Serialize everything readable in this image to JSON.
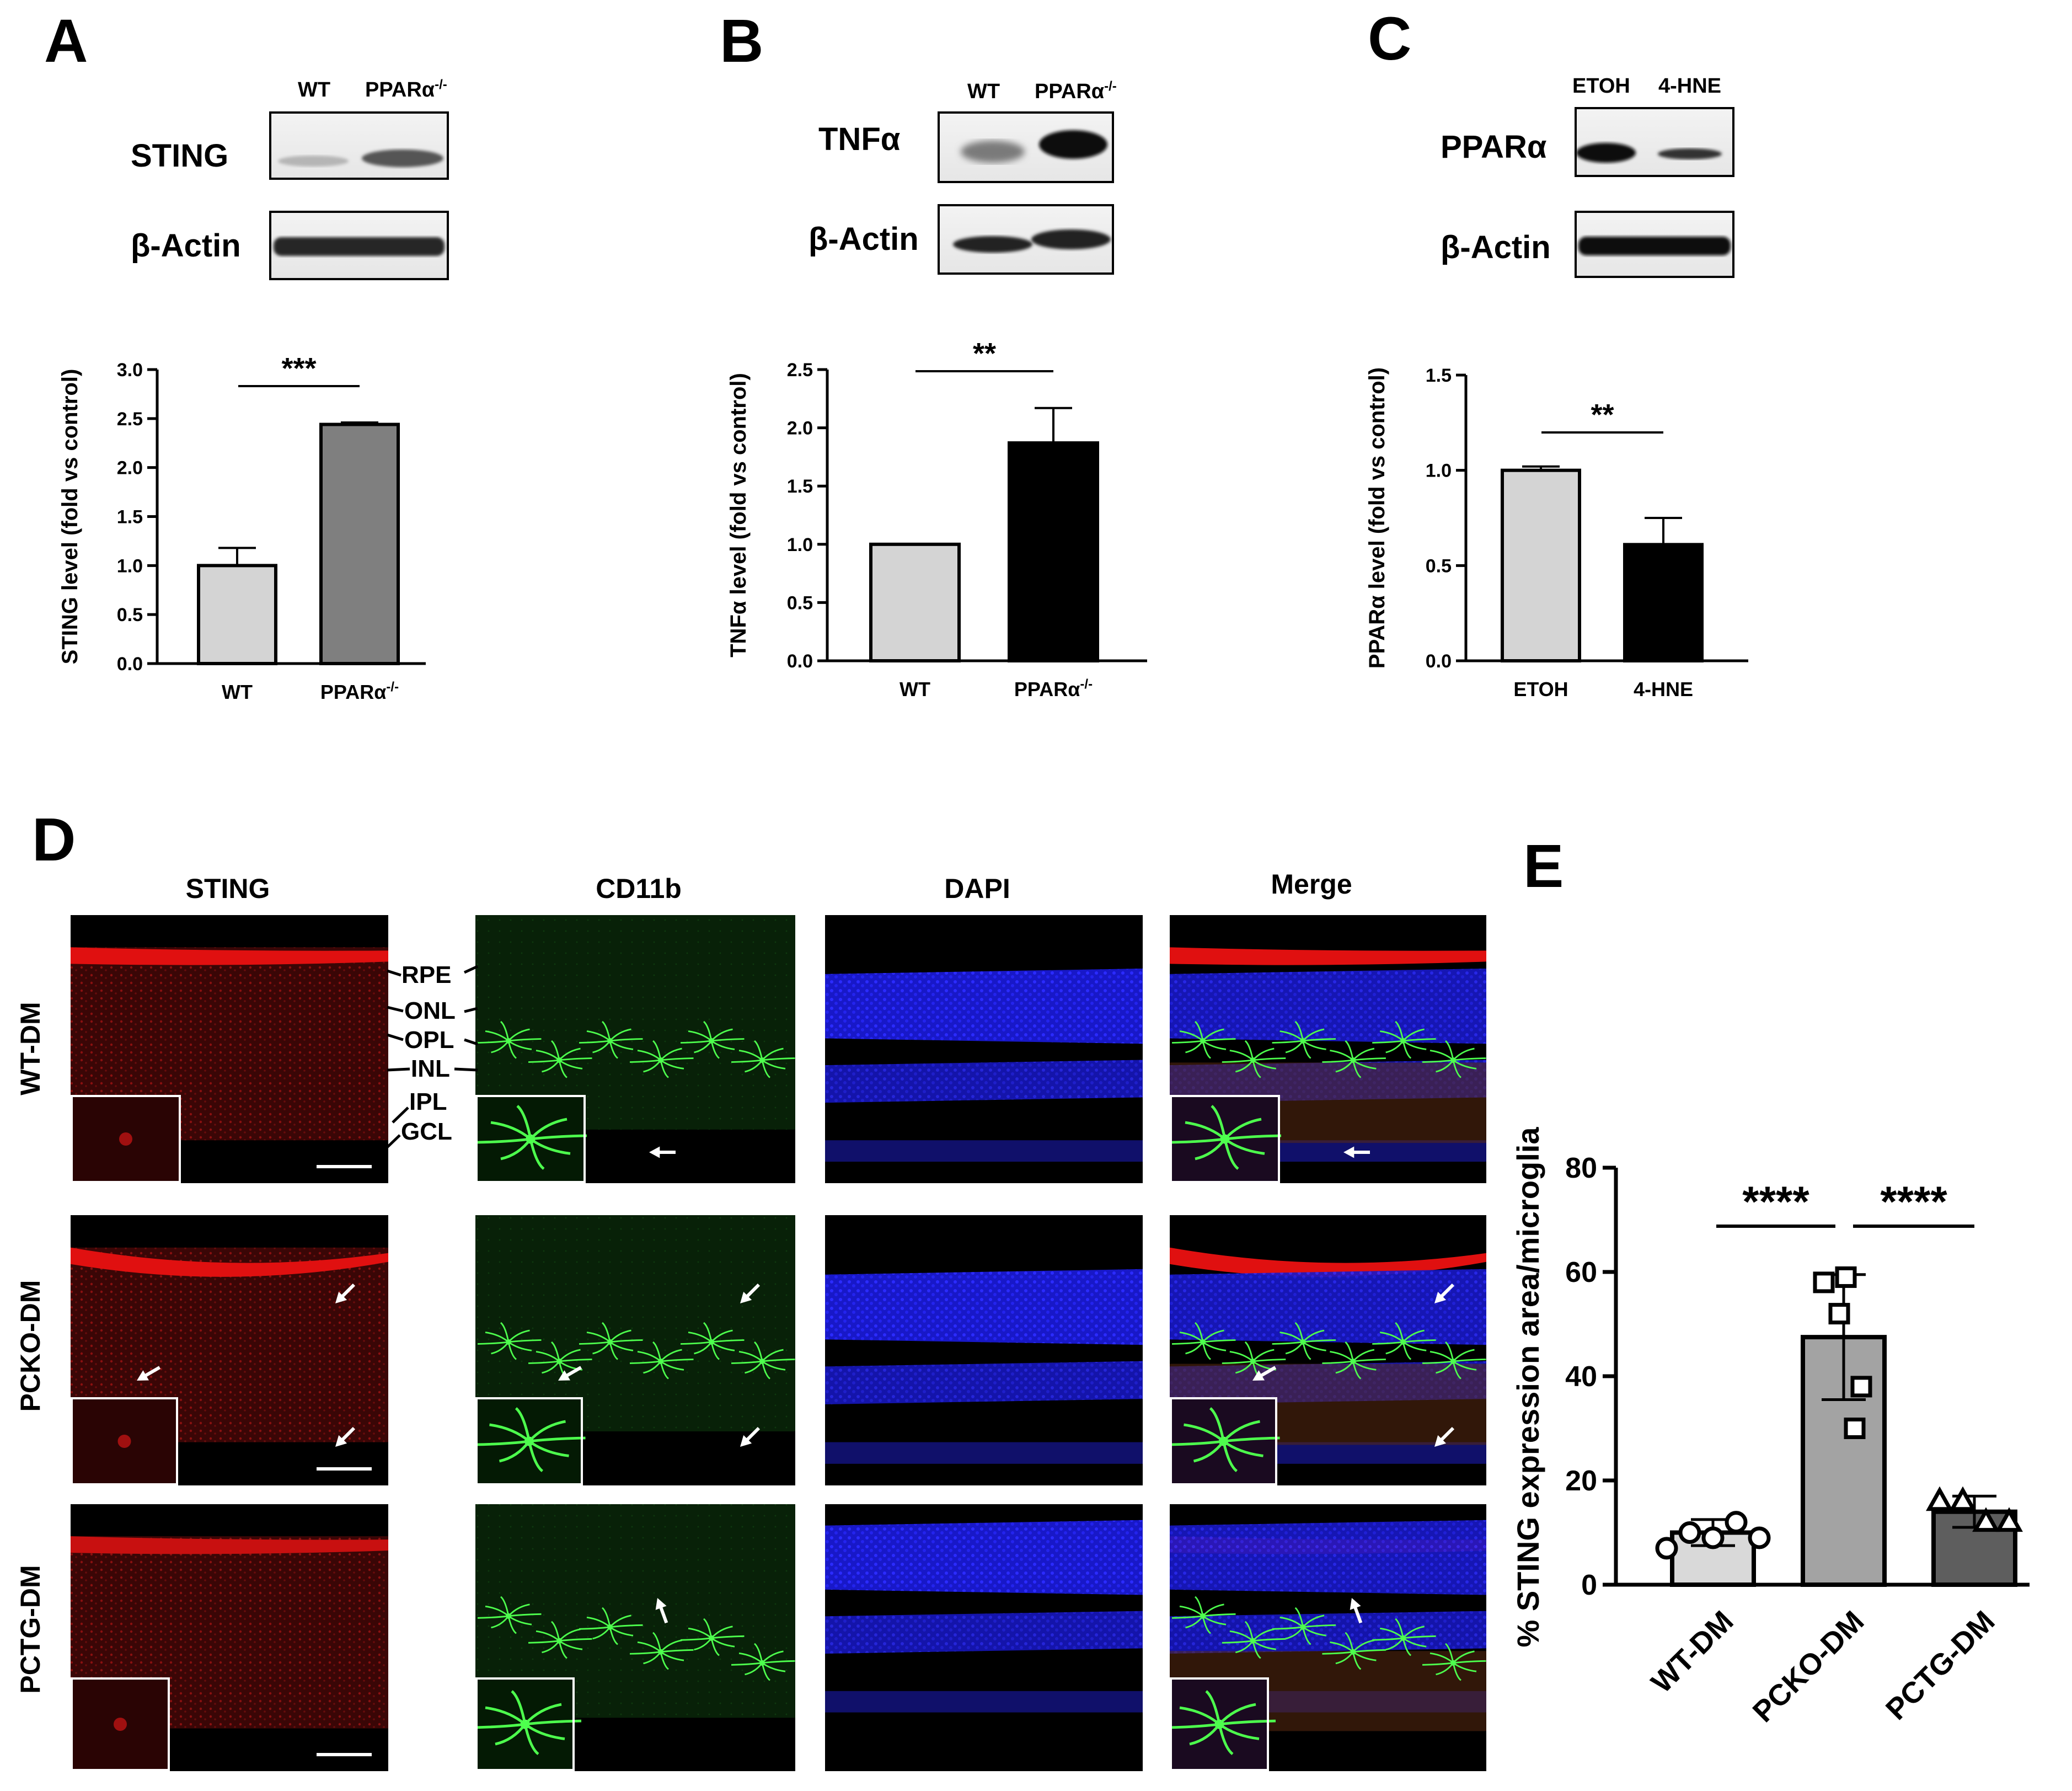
{
  "figure": {
    "panel_letters": [
      "A",
      "B",
      "C",
      "D",
      "E"
    ],
    "colors": {
      "bar_light": "#d4d4d4",
      "bar_mid": "#7f7f7f",
      "bar_dark": "#000000",
      "bar_e_light": "#d9d9d9",
      "bar_e_mid": "#a3a3a3",
      "bar_e_dark": "#5e5e5e",
      "sting_red": "#e01010",
      "cd11b_green": "#22cc33",
      "dapi_blue": "#1c1cf0"
    }
  },
  "panel_a": {
    "lanes": [
      "WT",
      "PPARα"
    ],
    "lane_superscript": "-/-",
    "blots": [
      "STING",
      "β-Actin"
    ],
    "significance": "***"
  },
  "panel_b": {
    "lanes": [
      "WT",
      "PPARα"
    ],
    "lane_superscript": "-/-",
    "blots": [
      "TNFα",
      "β-Actin"
    ],
    "significance": "**"
  },
  "panel_c": {
    "lanes": [
      "ETOH",
      "4-HNE"
    ],
    "blots": [
      "PPARα",
      "β-Actin"
    ],
    "significance": "**"
  },
  "panel_d": {
    "columns": [
      "STING",
      "CD11b",
      "DAPI",
      "Merge"
    ],
    "rows": [
      "WT-DM",
      "PCKO-DM",
      "PCTG-DM"
    ],
    "layers": [
      "RPE",
      "ONL",
      "OPL",
      "INL",
      "IPL",
      "GCL"
    ]
  },
  "chart_data": [
    {
      "panel": "A",
      "type": "bar",
      "categories": [
        "WT",
        "PPARα"
      ],
      "category_superscripts": [
        "",
        "-/-"
      ],
      "values": [
        1.0,
        2.44
      ],
      "errors": [
        0.18,
        0.02
      ],
      "ylabel": "STING level (fold vs control)",
      "ylim": [
        0,
        3.0
      ],
      "yticks": [
        "0.0",
        "0.5",
        "1.0",
        "1.5",
        "2.0",
        "2.5",
        "3.0"
      ],
      "significance": "***"
    },
    {
      "panel": "B",
      "type": "bar",
      "categories": [
        "WT",
        "PPARα"
      ],
      "category_superscripts": [
        "",
        "-/-"
      ],
      "values": [
        1.0,
        1.87
      ],
      "errors": [
        0.0,
        0.3
      ],
      "ylabel": "TNFα level (fold vs control)",
      "ylim": [
        0,
        2.5
      ],
      "yticks": [
        "0.0",
        "0.5",
        "1.0",
        "1.5",
        "2.0",
        "2.5"
      ],
      "significance": "**"
    },
    {
      "panel": "C",
      "type": "bar",
      "categories": [
        "ETOH",
        "4-HNE"
      ],
      "category_superscripts": [
        "",
        ""
      ],
      "values": [
        1.0,
        0.61
      ],
      "errors": [
        0.02,
        0.14
      ],
      "ylabel": "PPARα level (fold vs control)",
      "ylim": [
        0,
        1.5
      ],
      "yticks": [
        "0.0",
        "0.5",
        "1.0",
        "1.5"
      ],
      "significance": "**"
    },
    {
      "panel": "E",
      "type": "bar",
      "categories": [
        "WT-DM",
        "PCKO-DM",
        "PCTG-DM"
      ],
      "values": [
        10,
        47.5,
        14
      ],
      "errors": [
        2.5,
        12,
        3
      ],
      "points": [
        [
          7,
          10,
          9,
          12,
          9
        ],
        [
          58,
          59,
          52,
          38,
          30
        ],
        [
          16,
          16,
          12,
          12
        ]
      ],
      "markers": [
        "circle",
        "square",
        "triangle"
      ],
      "ylabel": "% STING expression area/microglia",
      "ylim": [
        0,
        80
      ],
      "yticks": [
        "0",
        "20",
        "40",
        "60",
        "80"
      ],
      "significance": [
        "****",
        "****"
      ]
    }
  ]
}
